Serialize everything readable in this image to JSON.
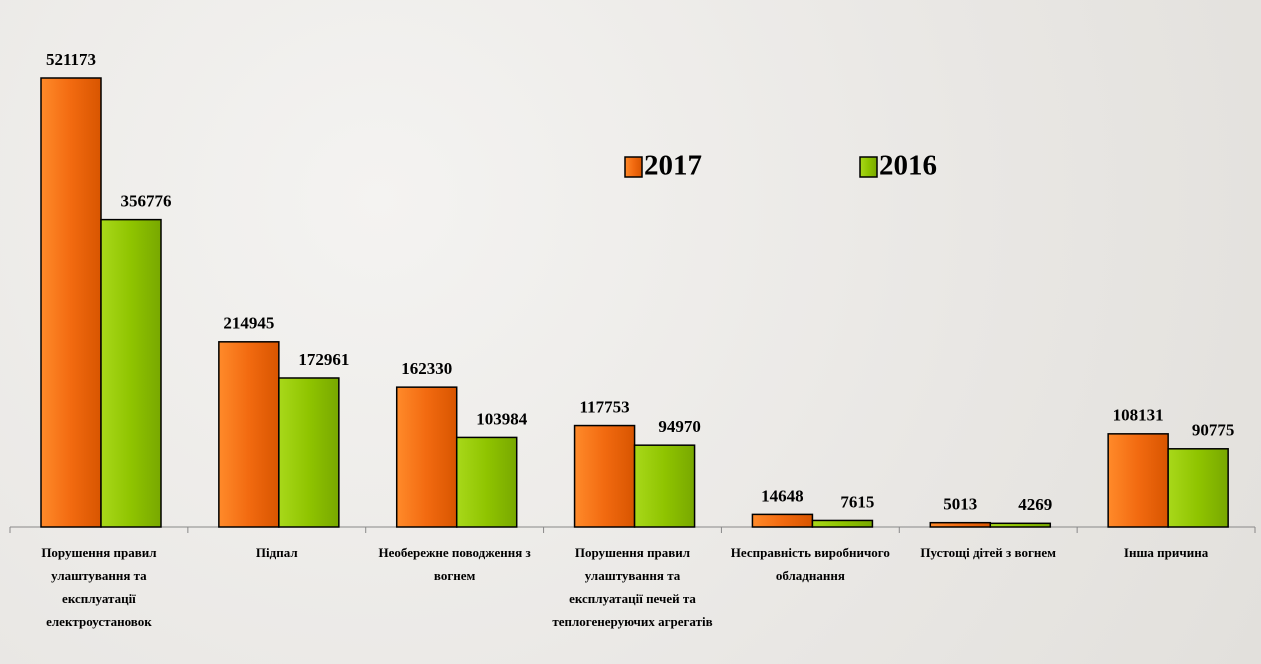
{
  "chart_data": {
    "type": "bar",
    "categories": [
      "Порушення правил улаштування та експлуатації електроустановок",
      "Підпал",
      "Необережне поводження з вогнем",
      "Порушення правил улаштування та експлуатації печей та теплогенеруючих агрегатів",
      "Несправність виробничого обладнання",
      "Пустощі дітей з вогнем",
      "Інша причина"
    ],
    "series": [
      {
        "name": "2017",
        "color": "#f26a10",
        "values": [
          521173,
          214945,
          162330,
          117753,
          14648,
          5013,
          108131
        ]
      },
      {
        "name": "2016",
        "color": "#8fc400",
        "values": [
          356776,
          172961,
          103984,
          94970,
          7615,
          4269,
          90775
        ]
      }
    ]
  }
}
